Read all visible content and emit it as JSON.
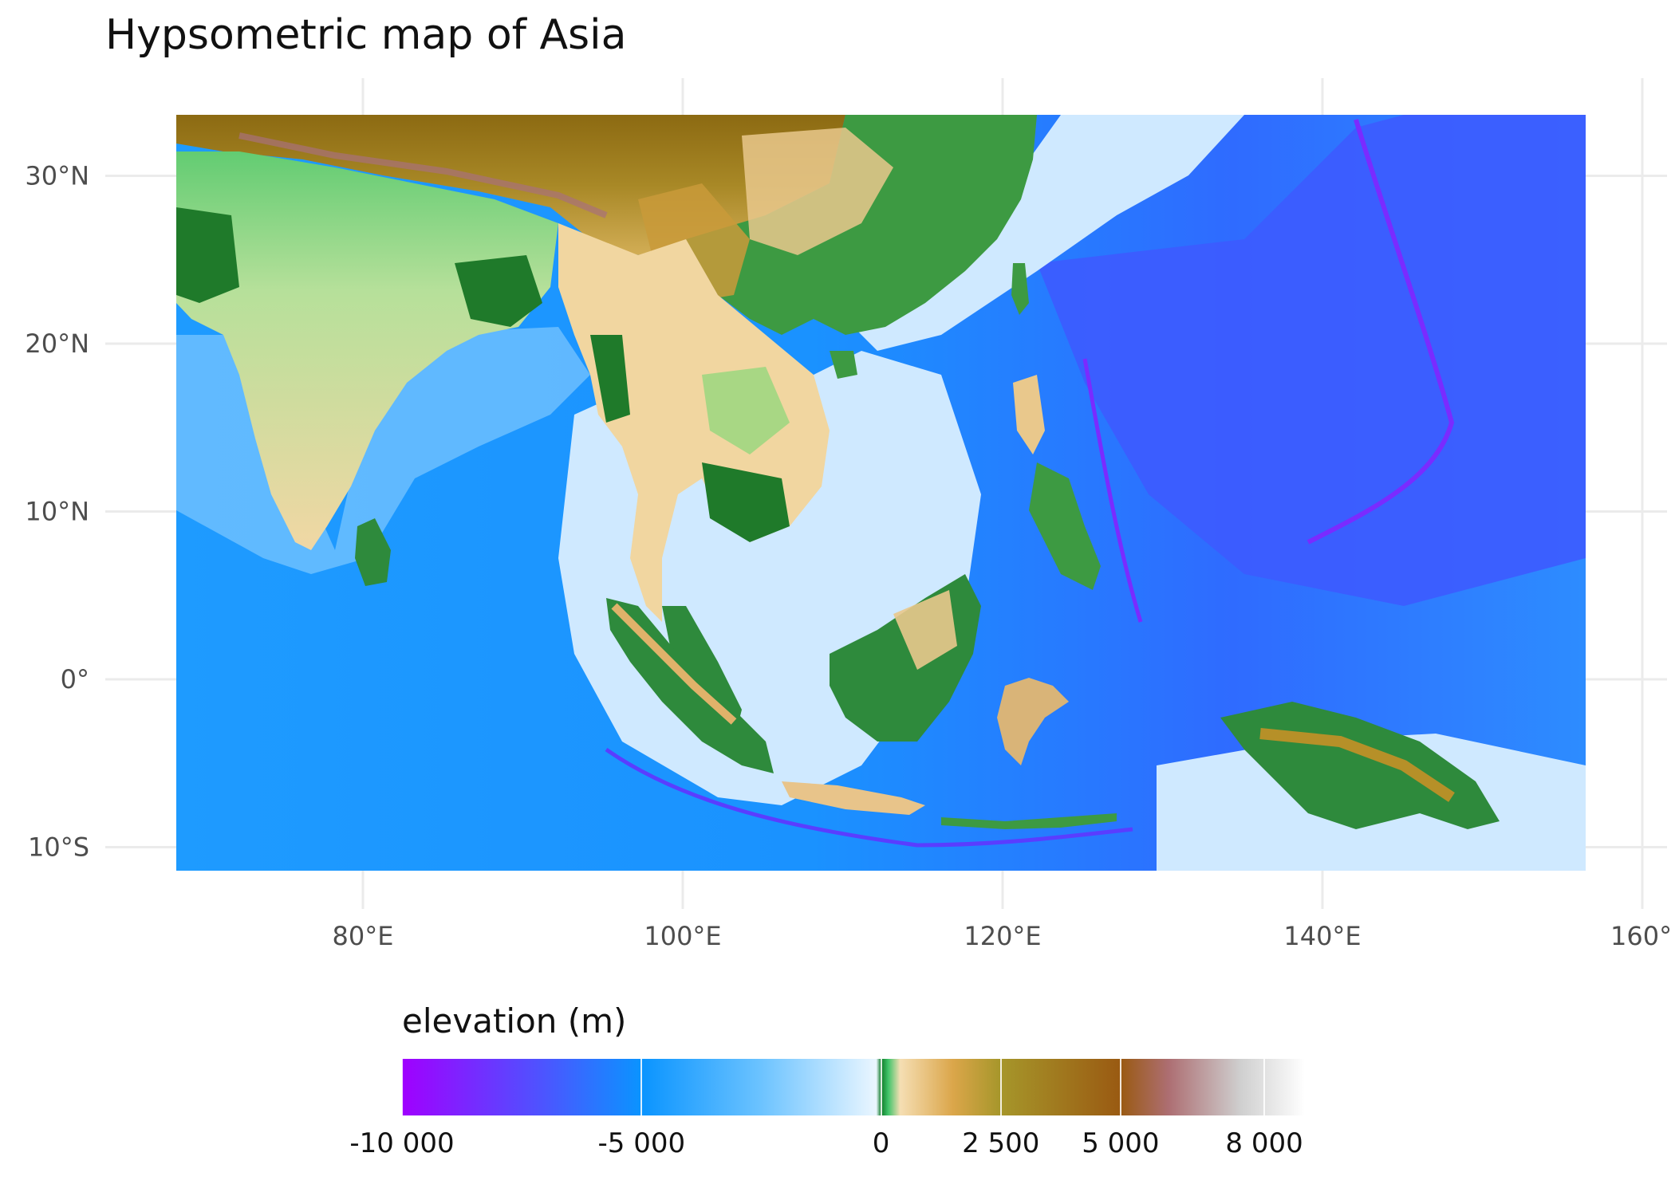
{
  "title": "Hypsometric map of Asia",
  "axes": {
    "x_ticks": [
      {
        "value": 80,
        "label": "80°E"
      },
      {
        "value": 100,
        "label": "100°E"
      },
      {
        "value": 120,
        "label": "120°E"
      },
      {
        "value": 140,
        "label": "140°E"
      },
      {
        "value": 160,
        "label": "160°"
      }
    ],
    "y_ticks": [
      {
        "value": 30,
        "label": "30°N"
      },
      {
        "value": 20,
        "label": "20°N"
      },
      {
        "value": 10,
        "label": "10°N"
      },
      {
        "value": 0,
        "label": "0°"
      },
      {
        "value": -10,
        "label": "10°S"
      }
    ],
    "lon_range": [
      68.3,
      156.2
    ],
    "lat_range": [
      -11.6,
      33.3
    ],
    "grid": true
  },
  "legend": {
    "title": "elevation (m)",
    "placement": "bottom",
    "range": [
      -10000,
      8848
    ],
    "ticks": [
      {
        "value": -10000,
        "label": "-10 000"
      },
      {
        "value": -5000,
        "label": "-5 000"
      },
      {
        "value": 0,
        "label": "0"
      },
      {
        "value": 2500,
        "label": "2 500"
      },
      {
        "value": 5000,
        "label": "5 000"
      },
      {
        "value": 8000,
        "label": "8 000"
      }
    ],
    "color_stops": [
      {
        "value": -10000,
        "color": "#a000ff"
      },
      {
        "value": -7000,
        "color": "#4b56ff"
      },
      {
        "value": -5000,
        "color": "#0a94ff"
      },
      {
        "value": -2500,
        "color": "#6cc3ff"
      },
      {
        "value": -100,
        "color": "#eaf6ff"
      },
      {
        "value": 0,
        "color": "#0e7a28"
      },
      {
        "value": 150,
        "color": "#40c46a"
      },
      {
        "value": 400,
        "color": "#f5deb3"
      },
      {
        "value": 1500,
        "color": "#dba64a"
      },
      {
        "value": 2500,
        "color": "#a6962a"
      },
      {
        "value": 5000,
        "color": "#9a5a12"
      },
      {
        "value": 6000,
        "color": "#ad6e72"
      },
      {
        "value": 7500,
        "color": "#cfcfcf"
      },
      {
        "value": 8848,
        "color": "#ffffff"
      }
    ]
  },
  "colors": {
    "ocean_deep": "#3d5bff",
    "ocean": "#1897ff",
    "shelf": "#cfe9ff",
    "trench": "#7a2bff",
    "lowland": "#2e8a3c",
    "plain": "#48c46c",
    "hills": "#f1d6a0",
    "mountains": "#b69028",
    "plateau": "#9c7a18",
    "grid": "#ebebeb",
    "axis_text": "#4d4d4d"
  }
}
